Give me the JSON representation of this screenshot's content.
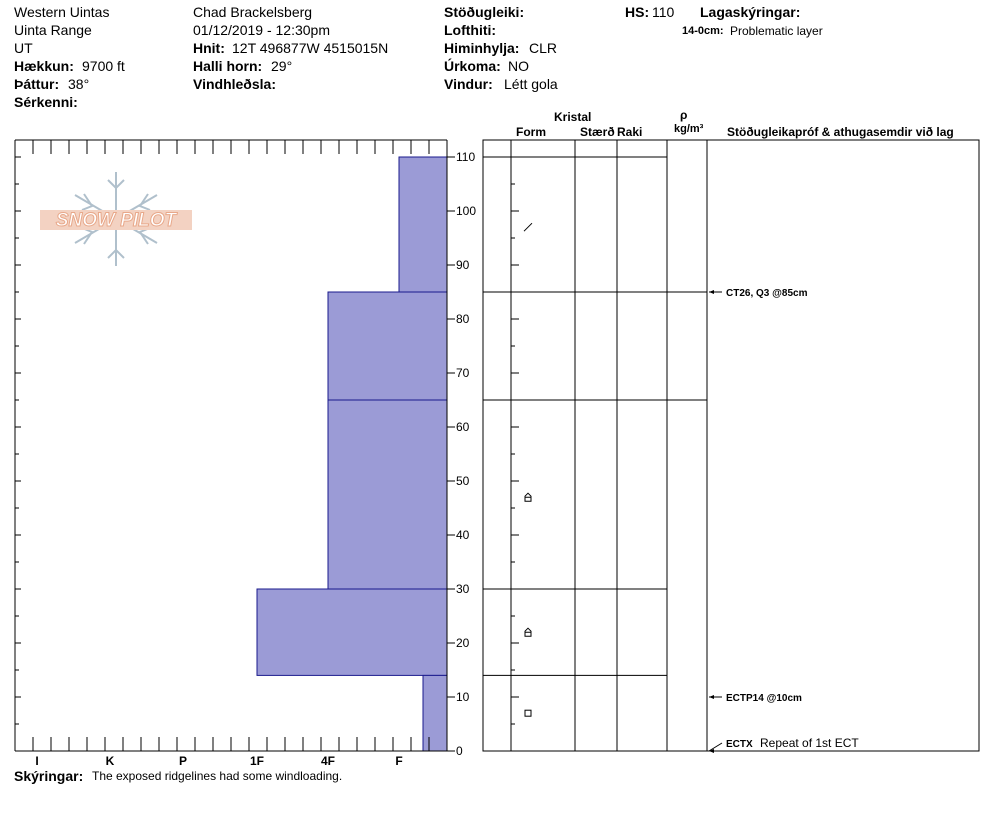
{
  "header": {
    "location": "Western Uintas",
    "range": "Uinta Range",
    "state": "UT",
    "elevation_label": "Hækkun:",
    "elevation_value": "9700 ft",
    "aspect_label": "Þáttur:",
    "aspect_value": "38°",
    "features_label": "Sérkenni:",
    "observer": "Chad Brackelsberg",
    "datetime": "01/12/2019 - 12:30pm",
    "coords_label": "Hnit:",
    "coords_value": "12T 496877W 4515015N",
    "slope_label": "Halli horn:",
    "slope_value": "29°",
    "windloading_label": "Vindhleðsla:",
    "stability_label": "Stöðugleiki:",
    "airtemp_label": "Lofthiti:",
    "sky_label": "Himinhylja:",
    "sky_value": "CLR",
    "precip_label": "Úrkoma:",
    "precip_value": "NO",
    "wind_label": "Vindur:",
    "wind_value": "Létt gola",
    "hs_label": "HS:",
    "hs_value": "110",
    "layer_notes_label": "Lagaskýringar:",
    "layer_note_depth": "14-0cm:",
    "layer_note_text": "Problematic layer"
  },
  "logo_text": "SNOW PILOT",
  "table_headers": {
    "crystal": "Kristal",
    "form": "Form",
    "size": "Stærð",
    "moisture": "Raki",
    "rho": "ρ",
    "density_unit": "kg/m³",
    "tests": "Stöðugleikapróf & athugasemdir við lag"
  },
  "tests": [
    {
      "code": "CT26, Q3 @85cm",
      "note": "",
      "depth": 85
    },
    {
      "code": "ECTP14 @10cm",
      "note": "",
      "depth": 10
    },
    {
      "code": "ECTX",
      "note": "Repeat of 1st ECT",
      "depth": 0
    }
  ],
  "footer": {
    "comments_label": "Skýringar:",
    "comments_text": "The exposed ridgelines had some windloading."
  },
  "colors": {
    "layer_fill": "#9b9bd6",
    "layer_stroke": "#1a1a8c",
    "logo": "#e8a88a",
    "snowflake": "#b0c0cc"
  },
  "chart_data": {
    "type": "bar",
    "orientation": "horizontal",
    "xlabel": "",
    "ylabel": "",
    "ylim": [
      0,
      110
    ],
    "y_ticks": [
      0,
      10,
      20,
      30,
      40,
      50,
      60,
      70,
      80,
      90,
      100,
      110
    ],
    "x_categories": [
      "I",
      "K",
      "P",
      "1F",
      "4F",
      "F"
    ],
    "layers": [
      {
        "top": 110,
        "bottom": 85,
        "hardness": "F",
        "grain": "/"
      },
      {
        "top": 85,
        "bottom": 65,
        "hardness": "4F",
        "grain": ""
      },
      {
        "top": 65,
        "bottom": 30,
        "hardness": "4F",
        "grain": "⌂"
      },
      {
        "top": 30,
        "bottom": 14,
        "hardness": "1F",
        "grain": "⌂"
      },
      {
        "top": 14,
        "bottom": 0,
        "hardness": "F",
        "grain": "□"
      }
    ],
    "grid": false
  }
}
